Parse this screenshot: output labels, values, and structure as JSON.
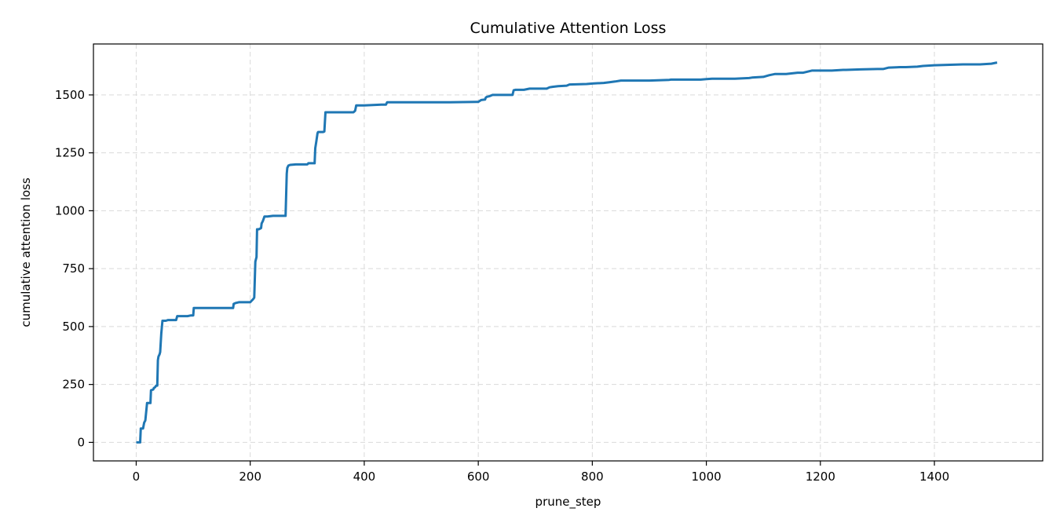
{
  "chart_data": {
    "type": "line",
    "title": "Cumulative Attention Loss",
    "xlabel": "prune_step",
    "ylabel": "cumulative attention loss",
    "xlim": [
      -75,
      1590
    ],
    "ylim": [
      -80,
      1720
    ],
    "xticks": [
      0,
      200,
      400,
      600,
      800,
      1000,
      1200,
      1400
    ],
    "yticks": [
      0,
      250,
      500,
      750,
      1000,
      1250,
      1500
    ],
    "xtick_labels": [
      "0",
      "200",
      "400",
      "600",
      "800",
      "1000",
      "1200",
      "1400"
    ],
    "ytick_labels": [
      "0",
      "250",
      "500",
      "750",
      "1000",
      "1250",
      "1500"
    ],
    "grid": true,
    "line_color": "#1f77b4",
    "series": [
      {
        "x": [
          0,
          7,
          8,
          12,
          14,
          16,
          19,
          25,
          26,
          30,
          31,
          33,
          35,
          37,
          38,
          39,
          41,
          42,
          44,
          46,
          52,
          56,
          70,
          72,
          75,
          90,
          96,
          100,
          101,
          110,
          150,
          170,
          171,
          175,
          180,
          195,
          200,
          205,
          207,
          209,
          211,
          212,
          215,
          219,
          220,
          222,
          225,
          230,
          240,
          250,
          262,
          264,
          265,
          267,
          270,
          280,
          300,
          301,
          302,
          313,
          314,
          316,
          318,
          319,
          325,
          328,
          330,
          332,
          381,
          384,
          386,
          400,
          430,
          438,
          440,
          500,
          550,
          598,
          600,
          605,
          612,
          613,
          615,
          620,
          625,
          630,
          660,
          662,
          665,
          680,
          690,
          720,
          725,
          730,
          740,
          755,
          760,
          790,
          800,
          820,
          830,
          840,
          850,
          900,
          935,
          938,
          960,
          990,
          1000,
          1010,
          1050,
          1075,
          1080,
          1100,
          1110,
          1120,
          1140,
          1160,
          1170,
          1180,
          1185,
          1200,
          1220,
          1240,
          1245,
          1270,
          1300,
          1310,
          1320,
          1340,
          1350,
          1370,
          1380,
          1400,
          1450,
          1480,
          1500,
          1510
        ],
        "y": [
          0,
          0,
          60,
          60,
          85,
          95,
          170,
          170,
          225,
          228,
          235,
          238,
          245,
          245,
          355,
          370,
          380,
          390,
          470,
          525,
          525,
          528,
          528,
          545,
          545,
          545,
          548,
          548,
          580,
          580,
          580,
          580,
          598,
          602,
          605,
          605,
          605,
          618,
          625,
          780,
          800,
          920,
          920,
          925,
          945,
          955,
          975,
          975,
          978,
          978,
          978,
          1160,
          1185,
          1195,
          1198,
          1200,
          1200,
          1202,
          1205,
          1205,
          1270,
          1300,
          1335,
          1340,
          1340,
          1340,
          1342,
          1425,
          1425,
          1432,
          1455,
          1455,
          1458,
          1458,
          1468,
          1468,
          1468,
          1470,
          1470,
          1478,
          1480,
          1488,
          1492,
          1495,
          1500,
          1500,
          1500,
          1520,
          1522,
          1522,
          1527,
          1527,
          1533,
          1535,
          1538,
          1540,
          1545,
          1547,
          1549,
          1552,
          1555,
          1558,
          1562,
          1562,
          1565,
          1566,
          1566,
          1566,
          1568,
          1570,
          1570,
          1573,
          1575,
          1578,
          1585,
          1590,
          1590,
          1596,
          1596,
          1602,
          1605,
          1605,
          1605,
          1608,
          1608,
          1610,
          1612,
          1612,
          1618,
          1620,
          1620,
          1622,
          1625,
          1628,
          1632,
          1632,
          1635,
          1640
        ]
      }
    ]
  }
}
